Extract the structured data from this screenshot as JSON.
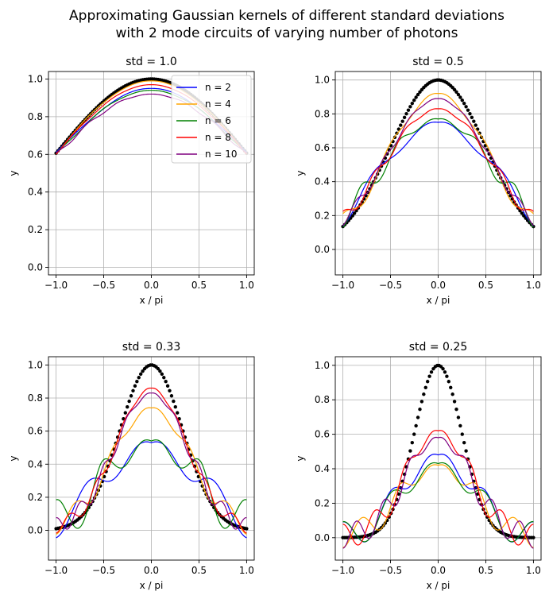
{
  "figure": {
    "title_line1": "Approximating Gaussian kernels of different standard deviations",
    "title_line2": "with 2 mode circuits of varying number of photons"
  },
  "colors": {
    "n = 2": "#0000ff",
    "n = 4": "#ffa500",
    "n = 6": "#008000",
    "n = 8": "#ff0000",
    "n = 10": "#800080",
    "target": "#000000",
    "grid": "#b0b0b0"
  },
  "chart_data": [
    {
      "type": "line",
      "title": "std = 1.0",
      "std": 1.0,
      "xlabel": "x / pi",
      "ylabel": "y",
      "xlim": [
        -1.08,
        1.08
      ],
      "ylim": [
        -0.04,
        1.04
      ],
      "xticks": [
        -1.0,
        -0.5,
        0.0,
        0.5,
        1.0
      ],
      "xtick_labels": [
        "−1.0",
        "−0.5",
        "0.0",
        "0.5",
        "1.0"
      ],
      "yticks": [
        0.0,
        0.2,
        0.4,
        0.6,
        0.8,
        1.0
      ],
      "ytick_labels": [
        "0.0",
        "0.2",
        "0.4",
        "0.6",
        "0.8",
        "1.0"
      ],
      "grid": true,
      "legend": "top-right",
      "series": [
        {
          "name": "n = 2",
          "peak": 0.95,
          "ripple": 0.015,
          "cycles": 2
        },
        {
          "name": "n = 4",
          "peak": 0.99,
          "ripple": 0.008,
          "cycles": 3
        },
        {
          "name": "n = 6",
          "peak": 0.94,
          "ripple": 0.012,
          "cycles": 4
        },
        {
          "name": "n = 8",
          "peak": 0.97,
          "ripple": 0.006,
          "cycles": 5
        },
        {
          "name": "n = 10",
          "peak": 0.92,
          "ripple": 0.018,
          "cycles": 6
        }
      ]
    },
    {
      "type": "line",
      "title": "std = 0.5",
      "std": 0.5,
      "xlabel": "x / pi",
      "ylabel": "y",
      "xlim": [
        -1.08,
        1.08
      ],
      "ylim": [
        -0.15,
        1.05
      ],
      "xticks": [
        -1.0,
        -0.5,
        0.0,
        0.5,
        1.0
      ],
      "xtick_labels": [
        "−1.0",
        "−0.5",
        "0.0",
        "0.5",
        "1.0"
      ],
      "yticks": [
        0.0,
        0.2,
        0.4,
        0.6,
        0.8,
        1.0
      ],
      "ytick_labels": [
        "0.0",
        "0.2",
        "0.4",
        "0.6",
        "0.8",
        "1.0"
      ],
      "grid": true,
      "series": [
        {
          "name": "n = 2",
          "peak": 0.75,
          "ripple": 0.06,
          "cycles": 3
        },
        {
          "name": "n = 4",
          "peak": 0.92,
          "ripple": 0.05,
          "cycles": 4
        },
        {
          "name": "n = 6",
          "peak": 0.77,
          "ripple": 0.065,
          "cycles": 5
        },
        {
          "name": "n = 8",
          "peak": 0.83,
          "ripple": 0.04,
          "cycles": 6
        },
        {
          "name": "n = 10",
          "peak": 0.89,
          "ripple": 0.03,
          "cycles": 7
        }
      ]
    },
    {
      "type": "line",
      "title": "std = 0.33",
      "std": 0.33,
      "xlabel": "x / pi",
      "ylabel": "y",
      "xlim": [
        -1.08,
        1.08
      ],
      "ylim": [
        -0.18,
        1.05
      ],
      "xticks": [
        -1.0,
        -0.5,
        0.0,
        0.5,
        1.0
      ],
      "xtick_labels": [
        "−1.0",
        "−0.5",
        "0.0",
        "0.5",
        "1.0"
      ],
      "yticks": [
        0.0,
        0.2,
        0.4,
        0.6,
        0.8,
        1.0
      ],
      "ytick_labels": [
        "0.0",
        "0.2",
        "0.4",
        "0.6",
        "0.8",
        "1.0"
      ],
      "grid": true,
      "series": [
        {
          "name": "n = 2",
          "peak": 0.53,
          "ripple": 0.1,
          "cycles": 3
        },
        {
          "name": "n = 4",
          "peak": 0.74,
          "ripple": 0.06,
          "cycles": 5
        },
        {
          "name": "n = 6",
          "peak": 0.54,
          "ripple": 0.13,
          "cycles": 4
        },
        {
          "name": "n = 8",
          "peak": 0.86,
          "ripple": 0.04,
          "cycles": 7
        },
        {
          "name": "n = 10",
          "peak": 0.83,
          "ripple": 0.05,
          "cycles": 8
        }
      ]
    },
    {
      "type": "line",
      "title": "std = 0.25",
      "std": 0.25,
      "xlabel": "x / pi",
      "ylabel": "y",
      "xlim": [
        -1.08,
        1.08
      ],
      "ylim": [
        -0.13,
        1.05
      ],
      "xticks": [
        -1.0,
        -0.5,
        0.0,
        0.5,
        1.0
      ],
      "xtick_labels": [
        "−1.0",
        "−0.5",
        "0.0",
        "0.5",
        "1.0"
      ],
      "yticks": [
        0.0,
        0.2,
        0.4,
        0.6,
        0.8,
        1.0
      ],
      "ytick_labels": [
        "0.0",
        "0.2",
        "0.4",
        "0.6",
        "0.8",
        "1.0"
      ],
      "grid": true,
      "series": [
        {
          "name": "n = 2",
          "peak": 0.48,
          "ripple": 0.08,
          "cycles": 4
        },
        {
          "name": "n = 4",
          "peak": 0.42,
          "ripple": 0.07,
          "cycles": 5
        },
        {
          "name": "n = 6",
          "peak": 0.43,
          "ripple": 0.08,
          "cycles": 4
        },
        {
          "name": "n = 8",
          "peak": 0.62,
          "ripple": 0.07,
          "cycles": 6
        },
        {
          "name": "n = 10",
          "peak": 0.58,
          "ripple": 0.07,
          "cycles": 7
        }
      ]
    }
  ]
}
